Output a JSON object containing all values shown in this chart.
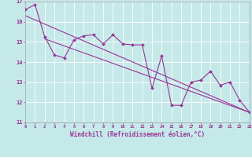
{
  "xlabel": "Windchill (Refroidissement éolien,°C)",
  "background_color": "#c5e8e8",
  "line_color": "#993399",
  "grid_color": "#ffffff",
  "x_hours": [
    0,
    1,
    2,
    3,
    4,
    5,
    6,
    7,
    8,
    9,
    10,
    11,
    12,
    13,
    14,
    15,
    16,
    17,
    18,
    19,
    20,
    21,
    22,
    23
  ],
  "windchill": [
    16.6,
    16.85,
    15.25,
    14.35,
    14.2,
    15.1,
    15.3,
    15.35,
    14.9,
    15.35,
    14.9,
    14.85,
    14.85,
    12.7,
    14.3,
    11.85,
    11.85,
    13.0,
    13.1,
    13.55,
    12.85,
    13.0,
    12.1,
    11.5
  ],
  "trend1_x": [
    0,
    23
  ],
  "trend1_y": [
    16.3,
    11.5
  ],
  "trend2_x": [
    2,
    23
  ],
  "trend2_y": [
    15.15,
    11.5
  ],
  "ylim": [
    11,
    17
  ],
  "yticks": [
    11,
    12,
    13,
    14,
    15,
    16,
    17
  ],
  "xlim": [
    0,
    23
  ]
}
